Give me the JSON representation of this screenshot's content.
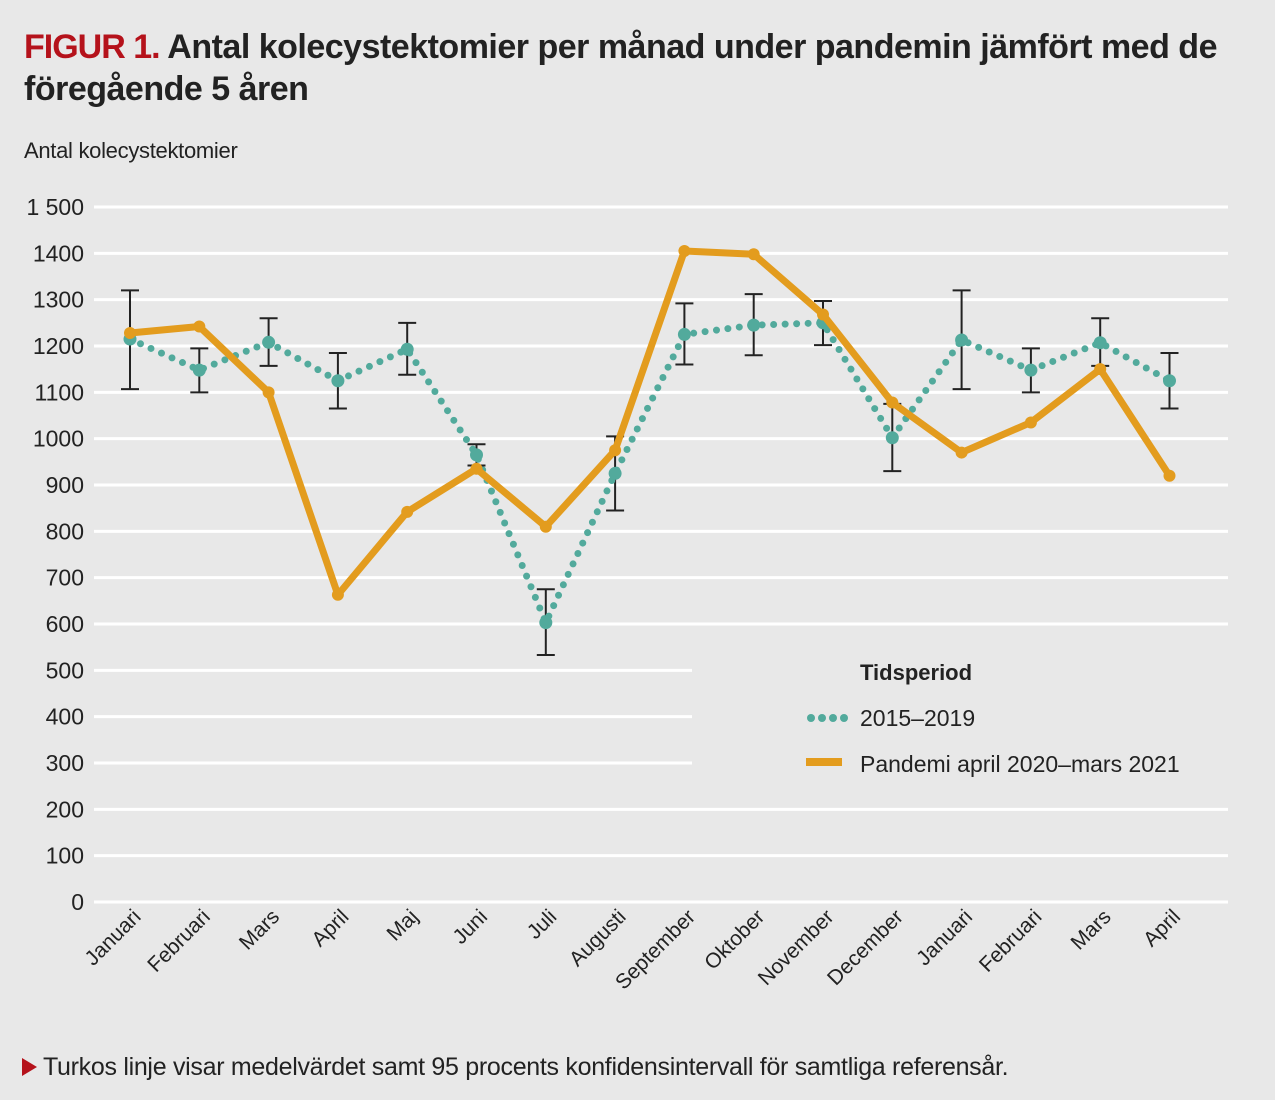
{
  "figure": {
    "label": "FIGUR 1.",
    "title": "Antal kolecystektomier per månad under pandemin jämfört med de föregående 5 åren"
  },
  "footnote": "Turkos linje visar medelvärdet samt 95 procents konfidensintervall för samtliga referensår.",
  "colors": {
    "background": "#e8e8e8",
    "grid": "#ffffff",
    "reference": "#52aa9c",
    "pandemic": "#e39c1e",
    "errorbar": "#222222",
    "accent": "#b5121b"
  },
  "chart_data": {
    "type": "line",
    "title": "Antal kolecystektomier per månad under pandemin jämfört med de föregående 5 åren",
    "xlabel": "",
    "ylabel": "Antal kolecystektomier",
    "ylim": [
      0,
      1500
    ],
    "yticks": [
      0,
      100,
      200,
      300,
      400,
      500,
      600,
      700,
      800,
      900,
      1000,
      1100,
      1200,
      1300,
      1400,
      1500
    ],
    "ytick_labels": [
      "0",
      "100",
      "200",
      "300",
      "400",
      "500",
      "600",
      "700",
      "800",
      "900",
      "1000",
      "1100",
      "1200",
      "1300",
      "1400",
      "1 500"
    ],
    "grid": true,
    "categories": [
      "Januari",
      "Februari",
      "Mars",
      "April",
      "Maj",
      "Juni",
      "Juli",
      "Augusti",
      "September",
      "Oktober",
      "November",
      "December",
      "Januari",
      "Februari",
      "Mars",
      "April"
    ],
    "legend": {
      "title": "Tidsperiod",
      "placement": "center-right"
    },
    "series": [
      {
        "name": "2015–2019",
        "style": "dotted",
        "values": [
          1215,
          1148,
          1208,
          1125,
          1193,
          965,
          603,
          925,
          1225,
          1245,
          1250,
          1002,
          1213,
          1148,
          1207,
          1125
        ],
        "ci_lower": [
          1107,
          1100,
          1157,
          1065,
          1138,
          942,
          533,
          845,
          1160,
          1180,
          1202,
          930,
          1107,
          1100,
          1157,
          1065
        ],
        "ci_upper": [
          1320,
          1195,
          1260,
          1185,
          1250,
          988,
          675,
          1005,
          1292,
          1312,
          1297,
          1075,
          1320,
          1195,
          1260,
          1185
        ]
      },
      {
        "name": "Pandemi april 2020–mars 2021",
        "style": "solid",
        "values": [
          1228,
          1242,
          1100,
          663,
          842,
          935,
          810,
          975,
          1405,
          1398,
          1268,
          1078,
          970,
          1035,
          1150,
          920
        ]
      }
    ]
  }
}
